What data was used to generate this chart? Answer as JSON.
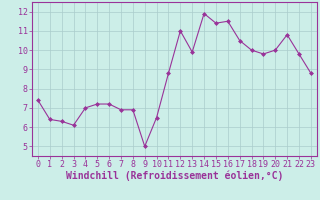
{
  "x": [
    0,
    1,
    2,
    3,
    4,
    5,
    6,
    7,
    8,
    9,
    10,
    11,
    12,
    13,
    14,
    15,
    16,
    17,
    18,
    19,
    20,
    21,
    22,
    23
  ],
  "y": [
    7.4,
    6.4,
    6.3,
    6.1,
    7.0,
    7.2,
    7.2,
    6.9,
    6.9,
    5.0,
    6.5,
    8.8,
    11.0,
    9.9,
    11.9,
    11.4,
    11.5,
    10.5,
    10.0,
    9.8,
    10.0,
    10.8,
    9.8,
    8.8
  ],
  "line_color": "#993399",
  "marker": "D",
  "marker_size": 2,
  "bg_color": "#cceee8",
  "grid_color": "#aacccc",
  "axis_color": "#993399",
  "xlabel": "Windchill (Refroidissement éolien,°C)",
  "xlim": [
    -0.5,
    23.5
  ],
  "ylim": [
    4.5,
    12.5
  ],
  "yticks": [
    5,
    6,
    7,
    8,
    9,
    10,
    11,
    12
  ],
  "xticks": [
    0,
    1,
    2,
    3,
    4,
    5,
    6,
    7,
    8,
    9,
    10,
    11,
    12,
    13,
    14,
    15,
    16,
    17,
    18,
    19,
    20,
    21,
    22,
    23
  ],
  "tick_label_fontsize": 6,
  "xlabel_fontsize": 7,
  "linewidth": 0.8
}
